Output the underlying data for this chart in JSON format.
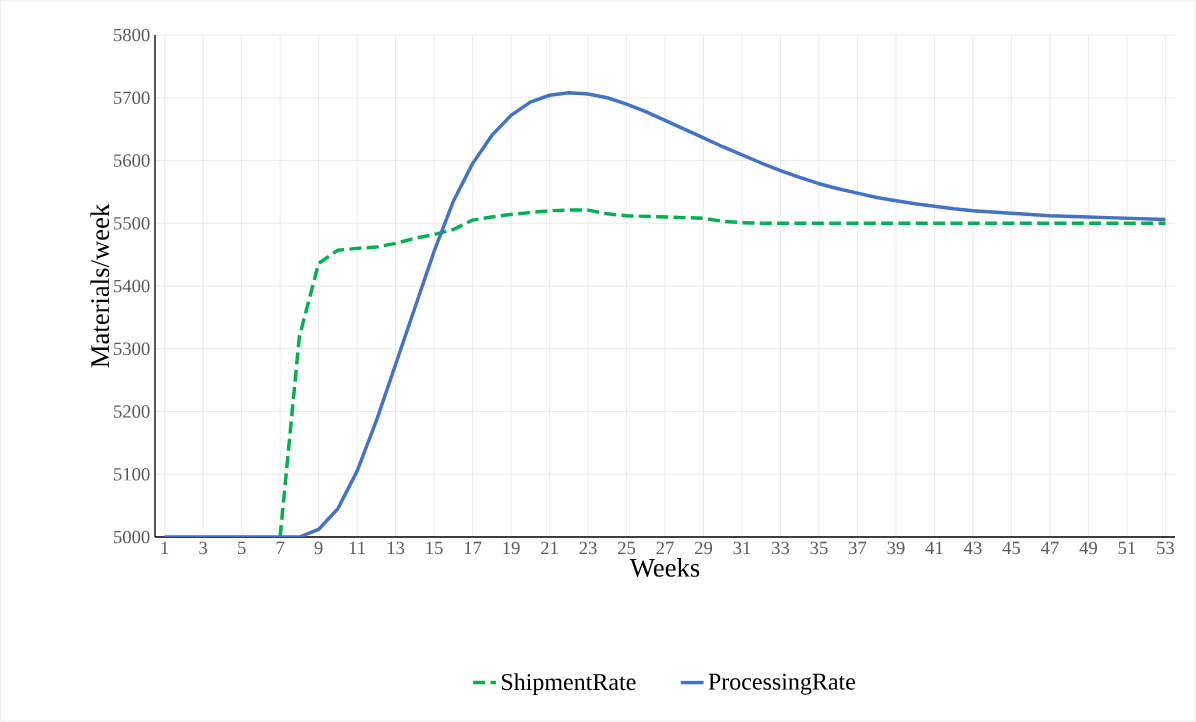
{
  "chart_data": {
    "type": "line",
    "xlabel": "Weeks",
    "ylabel": "Materials/week",
    "categories": [
      "1",
      null,
      "3",
      null,
      "5",
      null,
      "7",
      null,
      "9",
      null,
      "11",
      null,
      "13",
      null,
      "15",
      null,
      "17",
      null,
      "19",
      null,
      "21",
      null,
      "23",
      null,
      "25",
      null,
      "27",
      null,
      "29",
      null,
      "31",
      null,
      "33",
      null,
      "35",
      null,
      "37",
      null,
      "39",
      null,
      "41",
      null,
      "43",
      null,
      "45",
      null,
      "47",
      null,
      "49",
      null,
      "51",
      null,
      "53"
    ],
    "series": [
      {
        "name": "ShipmentRate",
        "color": "#00b050",
        "line_style": "dashed",
        "values": [
          null,
          null,
          null,
          null,
          null,
          null,
          5000,
          5319,
          5436,
          5457,
          5460,
          5462,
          5468,
          5476,
          5482,
          5490,
          5505,
          5510,
          5514,
          5517,
          5520,
          5521,
          5521,
          5515,
          5512,
          5511,
          5510,
          5509,
          5508,
          5503,
          5501,
          5500,
          5500,
          5500,
          5500,
          5500,
          5500,
          5500,
          5500,
          5500,
          5500,
          5500,
          5500,
          5500,
          5500,
          5500,
          5500,
          5500,
          5500,
          5500,
          5500,
          5500,
          5500
        ]
      },
      {
        "name": "ProcessingRate",
        "color": "#4472c4",
        "line_style": "solid",
        "values": [
          5000,
          5000,
          5000,
          5000,
          5000,
          5000,
          5000,
          5000,
          5012,
          5045,
          5105,
          5185,
          5275,
          5365,
          5455,
          5535,
          5595,
          5640,
          5672,
          5693,
          5704,
          5708,
          5706,
          5700,
          5690,
          5678,
          5664,
          5650,
          5636,
          5622,
          5609,
          5596,
          5584,
          5573,
          5563,
          5555,
          5548,
          5541,
          5536,
          5531,
          5527,
          5523,
          5520,
          5518,
          5516,
          5514,
          5512,
          5511,
          5510,
          5509,
          5508,
          5507,
          5506
        ]
      }
    ],
    "ylim": [
      5000,
      5800
    ],
    "yticks": [
      5000,
      5100,
      5200,
      5300,
      5400,
      5500,
      5600,
      5700,
      5800
    ],
    "grid": true,
    "legend": "bottom",
    "marker": "none"
  }
}
